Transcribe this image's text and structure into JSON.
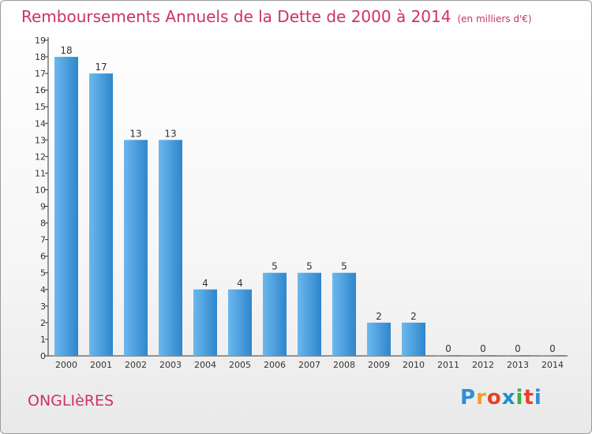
{
  "title": "Remboursements Annuels de la Dette de 2000 à 2014",
  "subtitle": "(en milliers d'€)",
  "place": "ONGLIèRES",
  "logo": {
    "letters": [
      "P",
      "r",
      "o",
      "x",
      "i",
      "t",
      "i"
    ],
    "colors": [
      "#2f8fd8",
      "#f0a020",
      "#e8402a",
      "#1e90c8",
      "#3fae3f",
      "#e8402a",
      "#2f8fd8"
    ]
  },
  "colors": {
    "bar_light": "#6bb8ee",
    "bar_dark": "#2f86cc",
    "title": "#cc3366"
  },
  "chart_data": {
    "type": "bar",
    "categories": [
      "2000",
      "2001",
      "2002",
      "2003",
      "2004",
      "2005",
      "2006",
      "2007",
      "2008",
      "2009",
      "2010",
      "2011",
      "2012",
      "2013",
      "2014"
    ],
    "values": [
      18,
      17,
      13,
      13,
      4,
      4,
      5,
      5,
      5,
      2,
      2,
      0,
      0,
      0,
      0
    ],
    "data_labels": [
      "18",
      "17",
      "13",
      "13",
      "4",
      "4",
      "5",
      "5",
      "5",
      "2",
      "2",
      "0",
      "0",
      "0",
      "0"
    ],
    "yticks": [
      "0",
      "1",
      "2",
      "3",
      "4",
      "5",
      "6",
      "7",
      "8",
      "9",
      "10",
      "11",
      "12",
      "13",
      "14",
      "15",
      "16",
      "17",
      "18",
      "19"
    ],
    "ylim": [
      0,
      19
    ],
    "grid": false
  }
}
